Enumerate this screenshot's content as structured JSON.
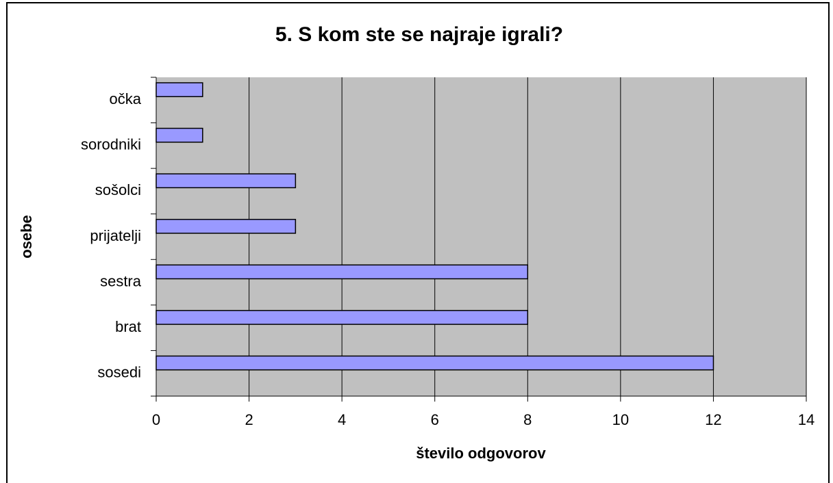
{
  "chart_data": {
    "type": "hbar",
    "title": "5. S kom ste se najraje igrali?",
    "xlabel": "število odgovorov",
    "ylabel": "osebe",
    "categories": [
      "očka",
      "sorodniki",
      "sošolci",
      "prijatelji",
      "sestra",
      "brat",
      "sosedi"
    ],
    "values": [
      1,
      1,
      3,
      3,
      8,
      8,
      12
    ],
    "color": "#9999ff",
    "xlim": [
      0,
      14
    ],
    "xticks": [
      0,
      2,
      4,
      6,
      8,
      10,
      12,
      14
    ],
    "grid": true
  }
}
